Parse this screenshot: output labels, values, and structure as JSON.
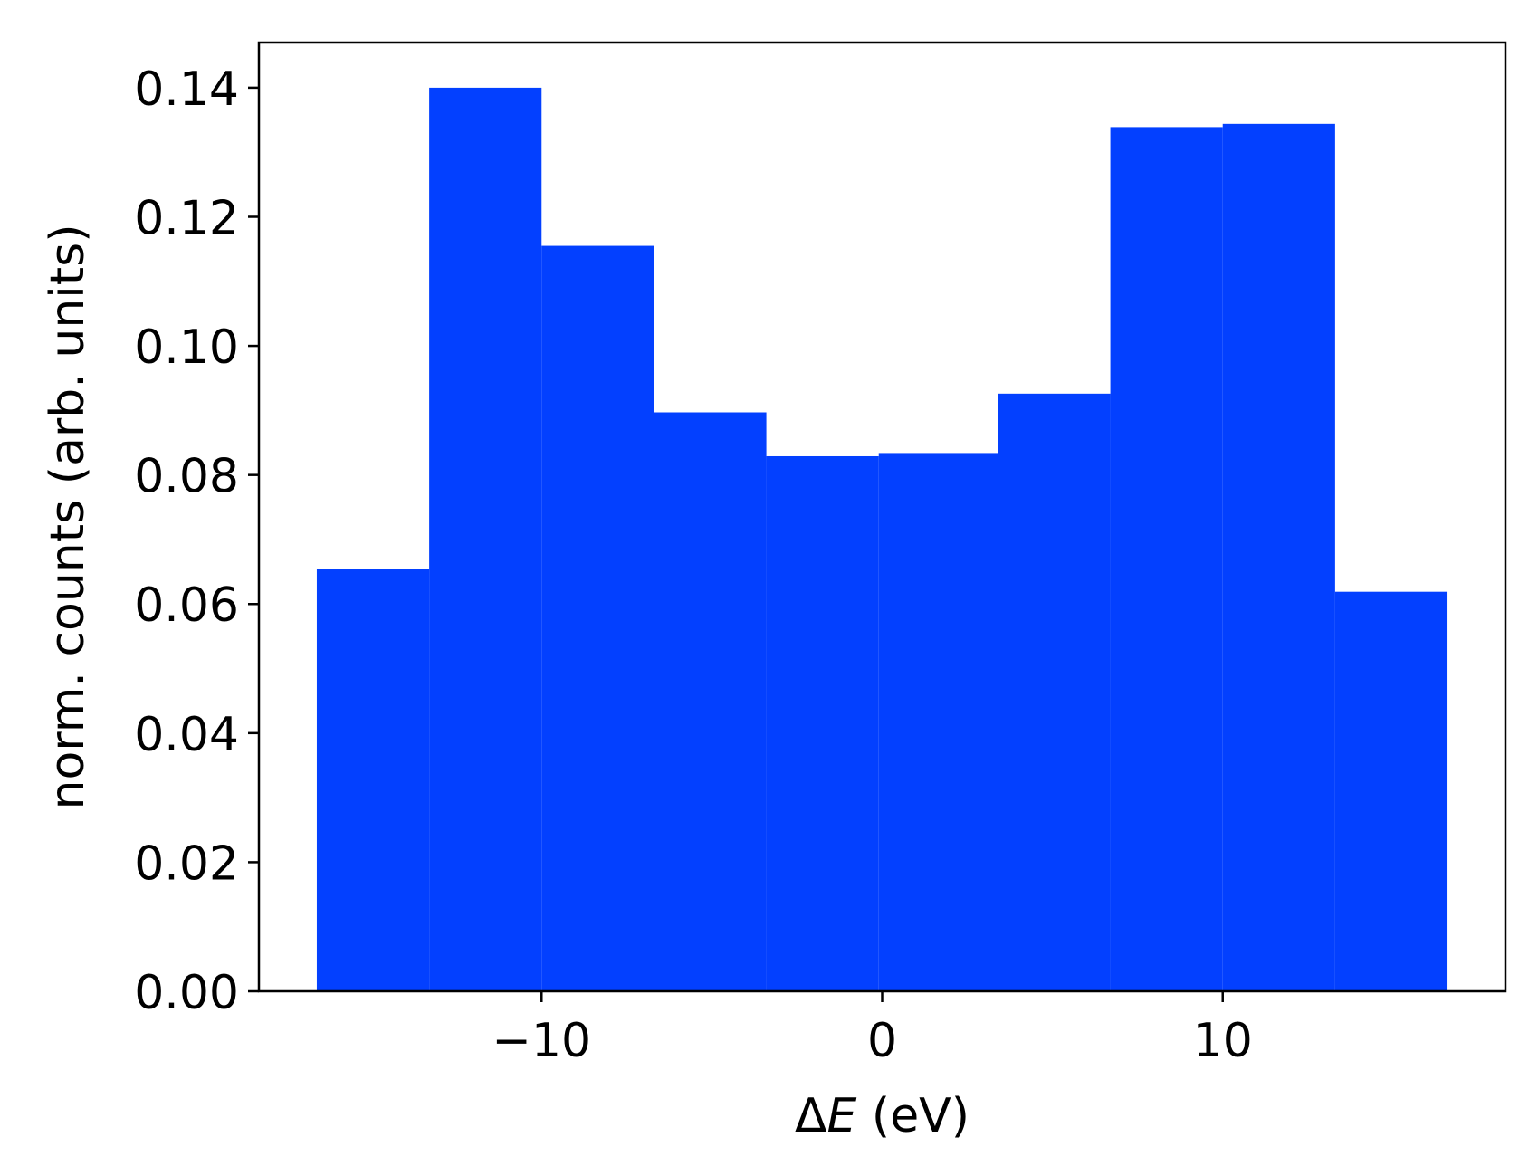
{
  "chart_data": {
    "type": "bar",
    "bins": [
      {
        "x0": -16.6,
        "x1": -13.3,
        "value": 0.0654
      },
      {
        "x0": -13.3,
        "x1": -10.0,
        "value": 0.14
      },
      {
        "x0": -10.0,
        "x1": -6.7,
        "value": 0.1155
      },
      {
        "x0": -6.7,
        "x1": -3.4,
        "value": 0.0897
      },
      {
        "x0": -3.4,
        "x1": -0.1,
        "value": 0.0829
      },
      {
        "x0": -0.1,
        "x1": 3.4,
        "value": 0.0834
      },
      {
        "x0": 3.4,
        "x1": 6.7,
        "value": 0.0926
      },
      {
        "x0": 6.7,
        "x1": 10.0,
        "value": 0.1339
      },
      {
        "x0": 10.0,
        "x1": 13.3,
        "value": 0.1344
      },
      {
        "x0": 13.3,
        "x1": 16.6,
        "value": 0.0619
      }
    ],
    "bar_color": "#0340ff",
    "xlim": [
      -18.3,
      18.3
    ],
    "ylim": [
      0,
      0.147
    ],
    "xticks": [
      {
        "value": -10,
        "label": "−10"
      },
      {
        "value": 0,
        "label": "0"
      },
      {
        "value": 10,
        "label": "10"
      }
    ],
    "yticks": [
      {
        "value": 0.0,
        "label": "0.00"
      },
      {
        "value": 0.02,
        "label": "0.02"
      },
      {
        "value": 0.04,
        "label": "0.04"
      },
      {
        "value": 0.06,
        "label": "0.06"
      },
      {
        "value": 0.08,
        "label": "0.08"
      },
      {
        "value": 0.1,
        "label": "0.10"
      },
      {
        "value": 0.12,
        "label": "0.12"
      },
      {
        "value": 0.14,
        "label": "0.14"
      }
    ],
    "xlabel_prefix": "Δ",
    "xlabel_var": "E",
    "xlabel_unit": " (eV)",
    "ylabel": "norm. counts (arb. units)",
    "grid": false,
    "legend": "none"
  }
}
